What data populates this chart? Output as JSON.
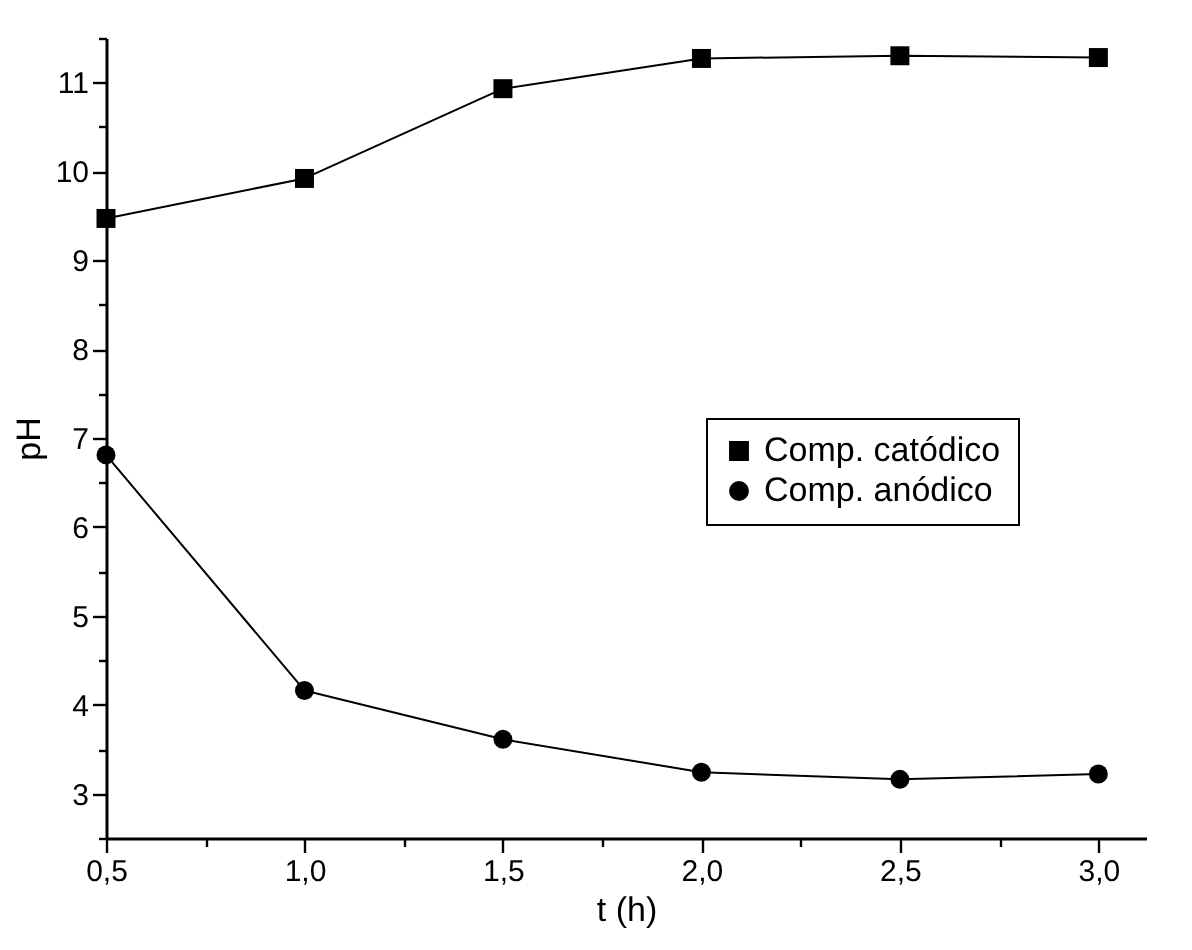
{
  "chart_data": {
    "type": "line",
    "xlabel": "t (h)",
    "ylabel": "pH",
    "x": [
      0.5,
      1.0,
      1.5,
      2.0,
      2.5,
      3.0
    ],
    "series": [
      {
        "name": "Comp. catódico",
        "color": "#000000",
        "marker": "square",
        "values": [
          9.47,
          9.92,
          10.93,
          11.27,
          11.3,
          11.28
        ]
      },
      {
        "name": "Comp. anódico",
        "color": "#000000",
        "marker": "circle",
        "values": [
          6.81,
          4.16,
          3.61,
          3.24,
          3.16,
          3.22
        ]
      }
    ],
    "xlim": [
      0.5,
      3.12
    ],
    "xticks": [
      {
        "value": 0.5,
        "label": "0,5"
      },
      {
        "value": 0.75,
        "label": null
      },
      {
        "value": 1.0,
        "label": "1,0"
      },
      {
        "value": 1.25,
        "label": null
      },
      {
        "value": 1.5,
        "label": "1,5"
      },
      {
        "value": 1.75,
        "label": null
      },
      {
        "value": 2.0,
        "label": "2,0"
      },
      {
        "value": 2.25,
        "label": null
      },
      {
        "value": 2.5,
        "label": "2,5"
      },
      {
        "value": 2.75,
        "label": null
      },
      {
        "value": 3.0,
        "label": "3,0"
      }
    ],
    "ylim": [
      2.5,
      11.5
    ],
    "yticks": [
      {
        "value": 2.5,
        "label": null
      },
      3,
      {
        "value": 3.5,
        "label": null
      },
      4,
      {
        "value": 4.5,
        "label": null
      },
      5,
      {
        "value": 5.5,
        "label": null
      },
      6,
      {
        "value": 6.5,
        "label": null
      },
      7,
      {
        "value": 7.5,
        "label": null
      },
      8,
      {
        "value": 8.5,
        "label": null
      },
      9,
      {
        "value": 9.5,
        "label": null
      },
      10,
      {
        "value": 10.5,
        "label": null
      },
      11,
      {
        "value": 11.5,
        "label": null
      }
    ],
    "grid": false,
    "legend": "right",
    "line_style": "solid"
  }
}
